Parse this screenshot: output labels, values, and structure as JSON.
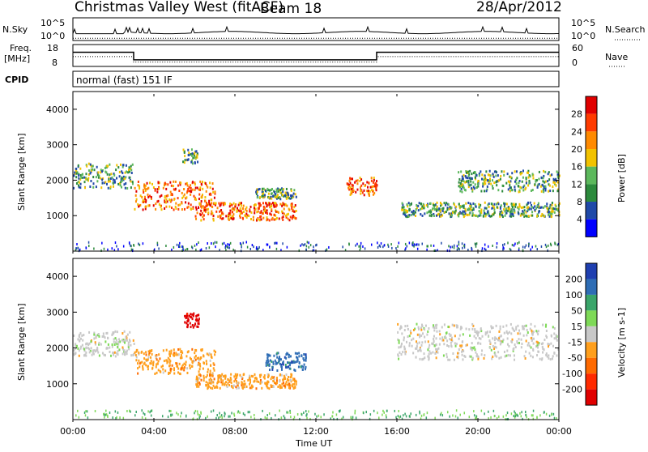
{
  "header": {
    "radar": "Christmas Valley West (fitACF)",
    "beam": "Beam 18",
    "date": "28/Apr/2012"
  },
  "strips": {
    "nsky_label": [
      "N.Sky"
    ],
    "nsky_ticks": [
      "10^5",
      "10^0"
    ],
    "nsearch_ticks": [
      "10^5",
      "10^0"
    ],
    "nsearch_label": "N.Search",
    "freq_label": [
      "Freq.",
      "[MHz]"
    ],
    "freq_ticks": [
      "18",
      "8"
    ],
    "nave_ticks": [
      "60",
      "0"
    ],
    "nave_label": "Nave",
    "cpid_label": "CPID",
    "cpid_text": "normal (fast) 151 IF"
  },
  "chart_data": [
    {
      "type": "heatmap",
      "title": "",
      "xlabel": "Time UT",
      "ylabel": "Slant Range [km]",
      "x_ticks": [
        "00:00",
        "04:00",
        "08:00",
        "12:00",
        "16:00",
        "20:00",
        "00:00"
      ],
      "y_ticks": [
        "1000",
        "2000",
        "3000",
        "4000"
      ],
      "ylim": [
        0,
        4500
      ],
      "colorbar": {
        "label": "Power [dB]",
        "ticks": [
          "4",
          "8",
          "12",
          "16",
          "20",
          "24",
          "28"
        ],
        "colors": [
          "#0000ff",
          "#1f49a8",
          "#2c8a3c",
          "#5cb85c",
          "#f2c200",
          "#ff8a00",
          "#ff3b00",
          "#e00000"
        ]
      },
      "bands": [
        {
          "start_h": 0,
          "end_h": 3,
          "range_km": [
            1800,
            2500
          ],
          "level": "medium"
        },
        {
          "start_h": 3,
          "end_h": 7,
          "range_km": [
            1200,
            2000
          ],
          "level": "high"
        },
        {
          "start_h": 5.4,
          "end_h": 6.2,
          "range_km": [
            2500,
            2900
          ],
          "level": "medium"
        },
        {
          "start_h": 6,
          "end_h": 11,
          "range_km": [
            900,
            1400
          ],
          "level": "high"
        },
        {
          "start_h": 9,
          "end_h": 11,
          "range_km": [
            1500,
            1800
          ],
          "level": "medium"
        },
        {
          "start_h": 13.5,
          "end_h": 15,
          "range_km": [
            1600,
            2100
          ],
          "level": "high"
        },
        {
          "start_h": 16.2,
          "end_h": 24,
          "range_km": [
            1000,
            1400
          ],
          "level": "medium"
        },
        {
          "start_h": 19,
          "end_h": 24,
          "range_km": [
            1700,
            2300
          ],
          "level": "medium"
        }
      ]
    },
    {
      "type": "heatmap",
      "title": "",
      "xlabel": "Time UT",
      "ylabel": "Slant Range [km]",
      "x_ticks": [
        "00:00",
        "04:00",
        "08:00",
        "12:00",
        "16:00",
        "20:00",
        "00:00"
      ],
      "y_ticks": [
        "1000",
        "2000",
        "3000",
        "4000"
      ],
      "ylim": [
        0,
        4500
      ],
      "colorbar": {
        "label": "Velocity [m s-1]",
        "ticks": [
          "200",
          "100",
          "50",
          "15",
          "-15",
          "-50",
          "-100",
          "-200"
        ],
        "colors": [
          "#1f3fb0",
          "#2e6db5",
          "#3aa56a",
          "#7ed957",
          "#c8c8c8",
          "#ff9f1c",
          "#ff6a00",
          "#ff2a00",
          "#e00000"
        ]
      },
      "bands": [
        {
          "start_h": 0,
          "end_h": 3,
          "range_km": [
            1800,
            2500
          ],
          "level": "~0"
        },
        {
          "start_h": 3,
          "end_h": 7,
          "range_km": [
            1300,
            2000
          ],
          "level": "-50"
        },
        {
          "start_h": 5.4,
          "end_h": 6.2,
          "range_km": [
            2600,
            3000
          ],
          "level": "-200"
        },
        {
          "start_h": 9.5,
          "end_h": 11.5,
          "range_km": [
            1400,
            1900
          ],
          "level": "100"
        },
        {
          "start_h": 6,
          "end_h": 11,
          "range_km": [
            900,
            1300
          ],
          "level": "-50"
        },
        {
          "start_h": 16,
          "end_h": 24,
          "range_km": [
            1700,
            2700
          ],
          "level": "~0"
        }
      ]
    }
  ]
}
